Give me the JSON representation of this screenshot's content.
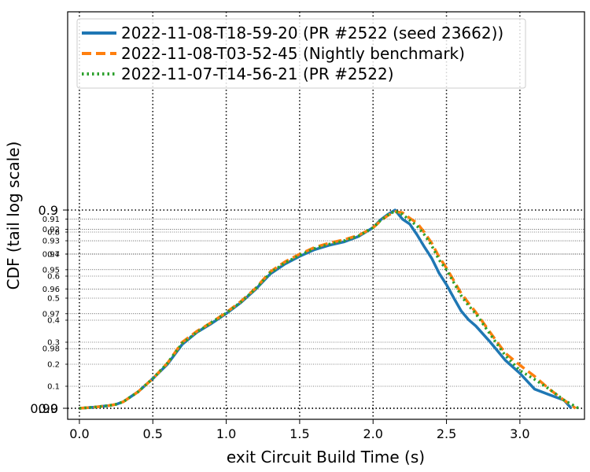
{
  "chart_data": {
    "type": "line",
    "xlabel": "exit Circuit Build Time (s)",
    "ylabel": "CDF (tail log scale)",
    "xlim": [
      -0.08,
      3.44
    ],
    "x_ticks": [
      "0.0",
      "0.5",
      "1.0",
      "1.5",
      "2.0",
      "2.5",
      "3.0"
    ],
    "x_tick_values": [
      0.0,
      0.5,
      1.0,
      1.5,
      2.0,
      2.5,
      3.0
    ],
    "y_scale": "tail-log",
    "y_major_ticks": [
      "0.0",
      "0.9",
      "0.99"
    ],
    "y_major_values": [
      0.0,
      0.9,
      0.99
    ],
    "y_minor_ticks": [
      "0.1",
      "0.2",
      "0.3",
      "0.4",
      "0.5",
      "0.6",
      "0.7",
      "0.8",
      "0.91",
      "0.92",
      "0.93",
      "0.94",
      "0.95",
      "0.96",
      "0.97",
      "0.98"
    ],
    "y_minor_values": [
      0.1,
      0.2,
      0.3,
      0.4,
      0.5,
      0.6,
      0.7,
      0.8,
      0.91,
      0.92,
      0.93,
      0.94,
      0.95,
      0.96,
      0.97,
      0.98
    ],
    "grid": true,
    "legend_position": "top-left",
    "series": [
      {
        "name": "2022-11-08-T18-59-20 (PR #2522 (seed 23662))",
        "color": "#1f77b4",
        "style": "solid",
        "x": [
          0.0,
          0.1,
          0.2,
          0.25,
          0.3,
          0.4,
          0.5,
          0.6,
          0.7,
          0.8,
          0.9,
          1.0,
          1.1,
          1.2,
          1.3,
          1.4,
          1.5,
          1.6,
          1.7,
          1.8,
          1.9,
          2.0,
          2.05,
          2.1,
          2.15,
          2.2,
          2.25,
          2.3,
          2.35,
          2.4,
          2.45,
          2.5,
          2.55,
          2.6,
          2.65,
          2.7,
          2.8,
          2.9,
          3.0,
          3.1,
          3.2,
          3.3,
          3.35
        ],
        "y": [
          0.0,
          0.005,
          0.012,
          0.018,
          0.03,
          0.075,
          0.135,
          0.2,
          0.29,
          0.345,
          0.385,
          0.43,
          0.48,
          0.54,
          0.61,
          0.655,
          0.69,
          0.72,
          0.74,
          0.755,
          0.78,
          0.82,
          0.855,
          0.88,
          0.9,
          0.91,
          0.915,
          0.925,
          0.935,
          0.943,
          0.952,
          0.958,
          0.964,
          0.969,
          0.972,
          0.974,
          0.9785,
          0.9825,
          0.985,
          0.9875,
          0.9883,
          0.989,
          0.99
        ]
      },
      {
        "name": "2022-11-08-T03-52-45 (Nightly benchmark)",
        "color": "#ff7f0e",
        "style": "dashed",
        "x": [
          0.0,
          0.1,
          0.2,
          0.25,
          0.3,
          0.4,
          0.5,
          0.6,
          0.7,
          0.8,
          0.9,
          1.0,
          1.1,
          1.2,
          1.3,
          1.4,
          1.5,
          1.6,
          1.7,
          1.8,
          1.9,
          2.0,
          2.05,
          2.1,
          2.15,
          2.2,
          2.25,
          2.3,
          2.35,
          2.4,
          2.45,
          2.5,
          2.55,
          2.6,
          2.65,
          2.7,
          2.8,
          2.9,
          3.0,
          3.1,
          3.2,
          3.3,
          3.38
        ],
        "y": [
          0.0,
          0.005,
          0.012,
          0.018,
          0.03,
          0.075,
          0.135,
          0.205,
          0.3,
          0.35,
          0.39,
          0.435,
          0.485,
          0.545,
          0.62,
          0.665,
          0.7,
          0.73,
          0.75,
          0.765,
          0.785,
          0.82,
          0.85,
          0.875,
          0.893,
          0.903,
          0.909,
          0.914,
          0.923,
          0.932,
          0.942,
          0.949,
          0.956,
          0.962,
          0.966,
          0.9695,
          0.976,
          0.981,
          0.9835,
          0.9855,
          0.9875,
          0.989,
          0.99
        ]
      },
      {
        "name": "2022-11-07-T14-56-21 (PR #2522)",
        "color": "#2ca02c",
        "style": "dotted",
        "x": [
          0.0,
          0.1,
          0.2,
          0.25,
          0.3,
          0.4,
          0.5,
          0.6,
          0.7,
          0.8,
          0.9,
          1.0,
          1.1,
          1.2,
          1.3,
          1.4,
          1.5,
          1.6,
          1.7,
          1.8,
          1.9,
          2.0,
          2.05,
          2.1,
          2.15,
          2.2,
          2.25,
          2.3,
          2.35,
          2.4,
          2.45,
          2.5,
          2.55,
          2.6,
          2.65,
          2.7,
          2.8,
          2.9,
          3.0,
          3.1,
          3.2,
          3.3,
          3.4
        ],
        "y": [
          0.0,
          0.005,
          0.012,
          0.018,
          0.03,
          0.075,
          0.135,
          0.205,
          0.295,
          0.345,
          0.39,
          0.432,
          0.482,
          0.542,
          0.615,
          0.66,
          0.695,
          0.725,
          0.745,
          0.76,
          0.782,
          0.82,
          0.852,
          0.877,
          0.895,
          0.905,
          0.911,
          0.917,
          0.925,
          0.934,
          0.944,
          0.95,
          0.957,
          0.963,
          0.967,
          0.97,
          0.9765,
          0.9815,
          0.9845,
          0.986,
          0.9875,
          0.989,
          0.99
        ]
      }
    ]
  }
}
